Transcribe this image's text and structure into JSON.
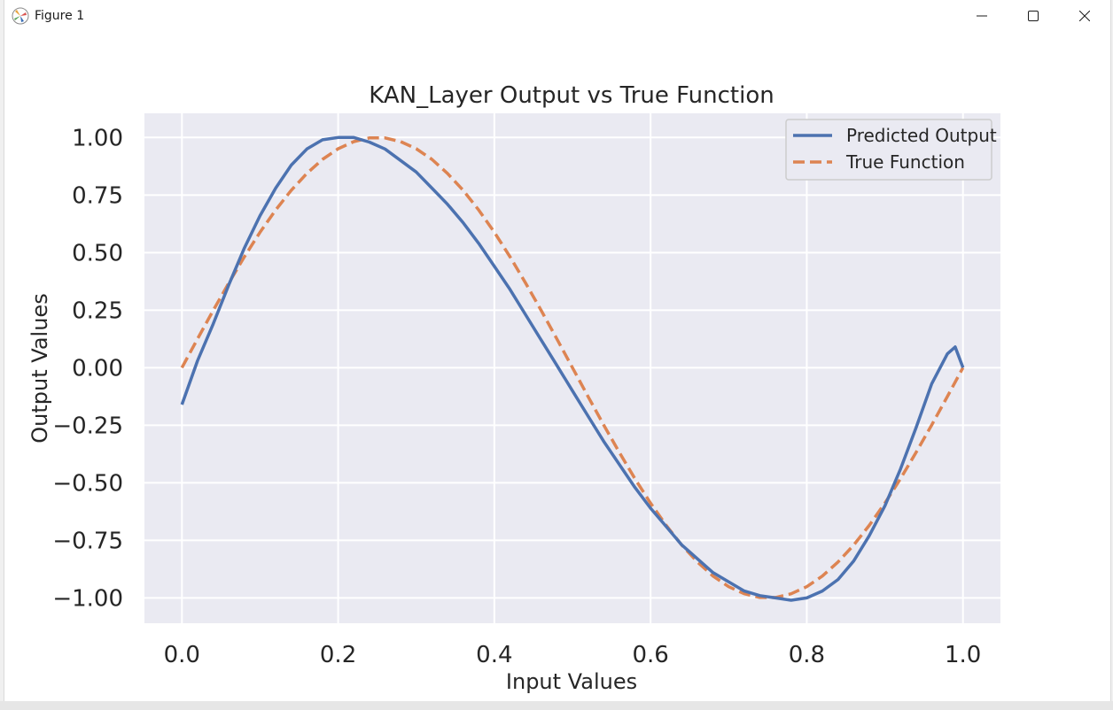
{
  "window": {
    "title": "Figure 1",
    "icons": {
      "app": "matplotlib-icon",
      "minimize": "minimize-icon",
      "maximize": "maximize-icon",
      "close": "close-icon"
    }
  },
  "colors": {
    "plot_background": "#eaeaf2",
    "grid": "#ffffff",
    "predicted": "#4c72b0",
    "true": "#dd8452",
    "legend_border": "#cccccc"
  },
  "chart_data": {
    "type": "line",
    "title": "KAN_Layer Output vs True Function",
    "xlabel": "Input Values",
    "ylabel": "Output Values",
    "xlim": [
      -0.048,
      1.048
    ],
    "ylim": [
      -1.11,
      1.105
    ],
    "xticks": [
      0.0,
      0.2,
      0.4,
      0.6,
      0.8,
      1.0
    ],
    "xtick_labels": [
      "0.0",
      "0.2",
      "0.4",
      "0.6",
      "0.8",
      "1.0"
    ],
    "yticks": [
      1.0,
      0.75,
      0.5,
      0.25,
      0.0,
      -0.25,
      -0.5,
      -0.75,
      -1.0
    ],
    "ytick_labels": [
      "1.00",
      "0.75",
      "0.50",
      "0.25",
      "0.00",
      "−0.25",
      "−0.50",
      "−0.75",
      "−1.00"
    ],
    "grid": true,
    "legend_position": "top-right",
    "series": [
      {
        "name": "Predicted Output",
        "style": "solid",
        "x": [
          0.0,
          0.02,
          0.04,
          0.06,
          0.08,
          0.1,
          0.12,
          0.14,
          0.16,
          0.18,
          0.2,
          0.22,
          0.24,
          0.26,
          0.28,
          0.3,
          0.32,
          0.34,
          0.36,
          0.38,
          0.4,
          0.42,
          0.44,
          0.46,
          0.48,
          0.5,
          0.52,
          0.54,
          0.56,
          0.58,
          0.6,
          0.62,
          0.64,
          0.66,
          0.68,
          0.7,
          0.72,
          0.74,
          0.76,
          0.78,
          0.8,
          0.82,
          0.84,
          0.86,
          0.88,
          0.9,
          0.92,
          0.94,
          0.96,
          0.98,
          0.99,
          1.0
        ],
        "y": [
          -0.16,
          0.03,
          0.19,
          0.36,
          0.52,
          0.66,
          0.78,
          0.88,
          0.95,
          0.99,
          1.0,
          1.0,
          0.98,
          0.95,
          0.9,
          0.85,
          0.78,
          0.71,
          0.63,
          0.54,
          0.44,
          0.34,
          0.23,
          0.12,
          0.01,
          -0.1,
          -0.21,
          -0.32,
          -0.42,
          -0.52,
          -0.61,
          -0.69,
          -0.77,
          -0.83,
          -0.89,
          -0.93,
          -0.97,
          -0.99,
          -1.0,
          -1.01,
          -1.0,
          -0.97,
          -0.92,
          -0.84,
          -0.73,
          -0.6,
          -0.44,
          -0.26,
          -0.07,
          0.06,
          0.09,
          0.0
        ]
      },
      {
        "name": "True Function",
        "style": "dashed",
        "x": [
          0.0,
          0.02,
          0.04,
          0.06,
          0.08,
          0.1,
          0.12,
          0.14,
          0.16,
          0.18,
          0.2,
          0.22,
          0.24,
          0.26,
          0.28,
          0.3,
          0.32,
          0.34,
          0.36,
          0.38,
          0.4,
          0.42,
          0.44,
          0.46,
          0.48,
          0.5,
          0.52,
          0.54,
          0.56,
          0.58,
          0.6,
          0.62,
          0.64,
          0.66,
          0.68,
          0.7,
          0.72,
          0.74,
          0.76,
          0.78,
          0.8,
          0.82,
          0.84,
          0.86,
          0.88,
          0.9,
          0.92,
          0.94,
          0.96,
          0.98,
          1.0
        ],
        "y": [
          0.0,
          0.125,
          0.249,
          0.368,
          0.482,
          0.588,
          0.685,
          0.771,
          0.844,
          0.905,
          0.951,
          0.982,
          0.998,
          0.998,
          0.982,
          0.951,
          0.905,
          0.844,
          0.771,
          0.685,
          0.588,
          0.482,
          0.368,
          0.249,
          0.125,
          0.0,
          -0.125,
          -0.249,
          -0.368,
          -0.482,
          -0.588,
          -0.685,
          -0.771,
          -0.844,
          -0.905,
          -0.951,
          -0.982,
          -0.998,
          -0.998,
          -0.982,
          -0.951,
          -0.905,
          -0.844,
          -0.771,
          -0.685,
          -0.588,
          -0.482,
          -0.368,
          -0.249,
          -0.125,
          0.0
        ]
      }
    ]
  }
}
